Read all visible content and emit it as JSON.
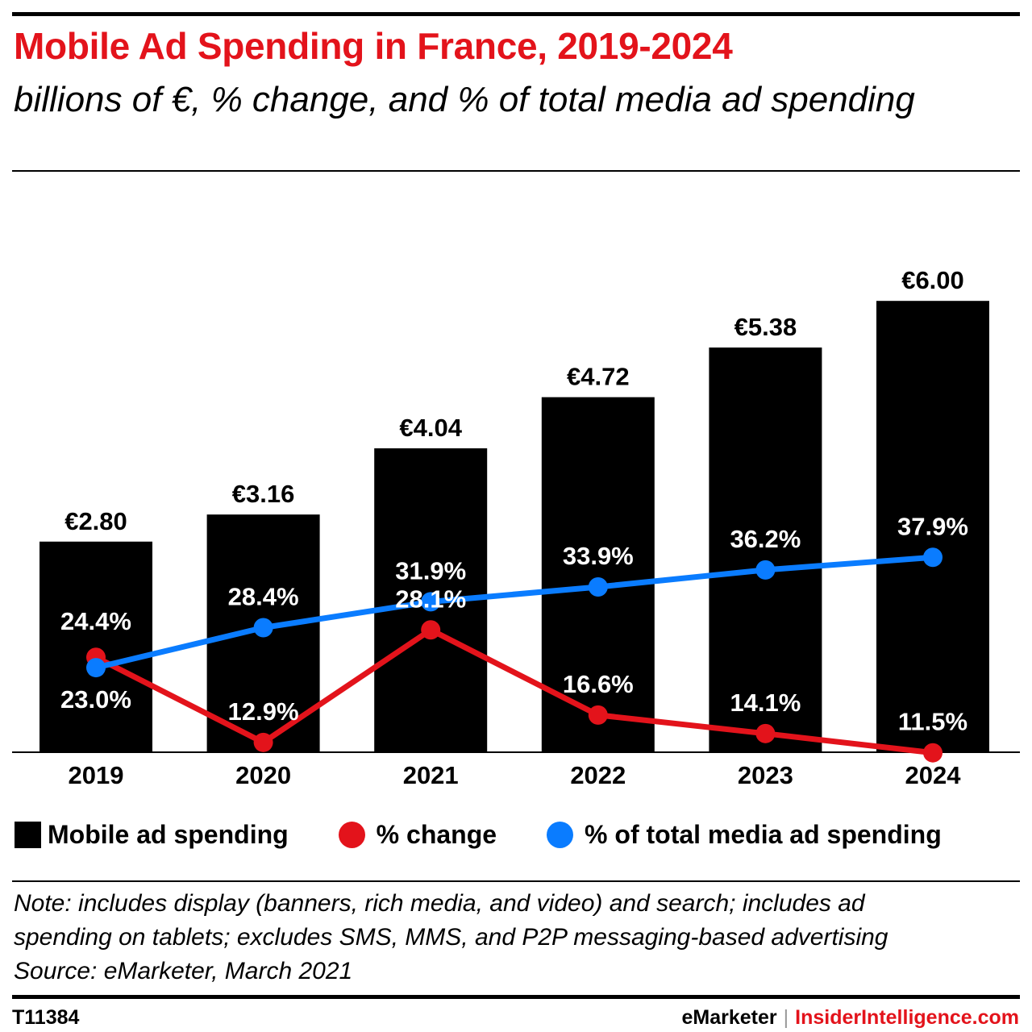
{
  "header": {
    "title": "Mobile Ad Spending in France, 2019-2024",
    "subtitle": "billions of €, % change, and % of total media ad spending"
  },
  "chart_data": {
    "type": "bar",
    "title": "Mobile Ad Spending in France, 2019-2024",
    "subtitle": "billions of €, % change, and % of total media ad spending",
    "categories": [
      "2019",
      "2020",
      "2021",
      "2022",
      "2023",
      "2024"
    ],
    "series": [
      {
        "name": "Mobile ad spending",
        "type": "bar",
        "values": [
          2.8,
          3.16,
          4.04,
          4.72,
          5.38,
          6.0
        ],
        "labels": [
          "€2.80",
          "€3.16",
          "€4.04",
          "€4.72",
          "€5.38",
          "€6.00"
        ],
        "color": "#000000"
      },
      {
        "name": "% change",
        "type": "line",
        "values": [
          24.4,
          12.9,
          28.1,
          16.6,
          14.1,
          11.5
        ],
        "labels": [
          "24.4%",
          "12.9%",
          "28.1%",
          "16.6%",
          "14.1%",
          "11.5%"
        ],
        "color": "#e3131b"
      },
      {
        "name": "% of total media ad spending",
        "type": "line",
        "values": [
          23.0,
          28.4,
          31.9,
          33.9,
          36.2,
          37.9
        ],
        "labels": [
          "23.0%",
          "28.4%",
          "31.9%",
          "33.9%",
          "36.2%",
          "37.9%"
        ],
        "color": "#0a7cff"
      }
    ],
    "legend_position": "bottom",
    "grid": false
  },
  "notes": {
    "line1": "Note: includes display (banners, rich media, and video) and search; includes ad",
    "line2": "spending on tablets; excludes SMS, MMS, and P2P messaging-based advertising",
    "line3": "Source: eMarketer, March 2021"
  },
  "footer": {
    "id": "T11384",
    "brand1": "eMarketer",
    "separator": "|",
    "brand2": "InsiderIntelligence.com"
  },
  "colors": {
    "accent_red": "#e3131b",
    "accent_blue": "#0a7cff",
    "bar": "#000000"
  }
}
